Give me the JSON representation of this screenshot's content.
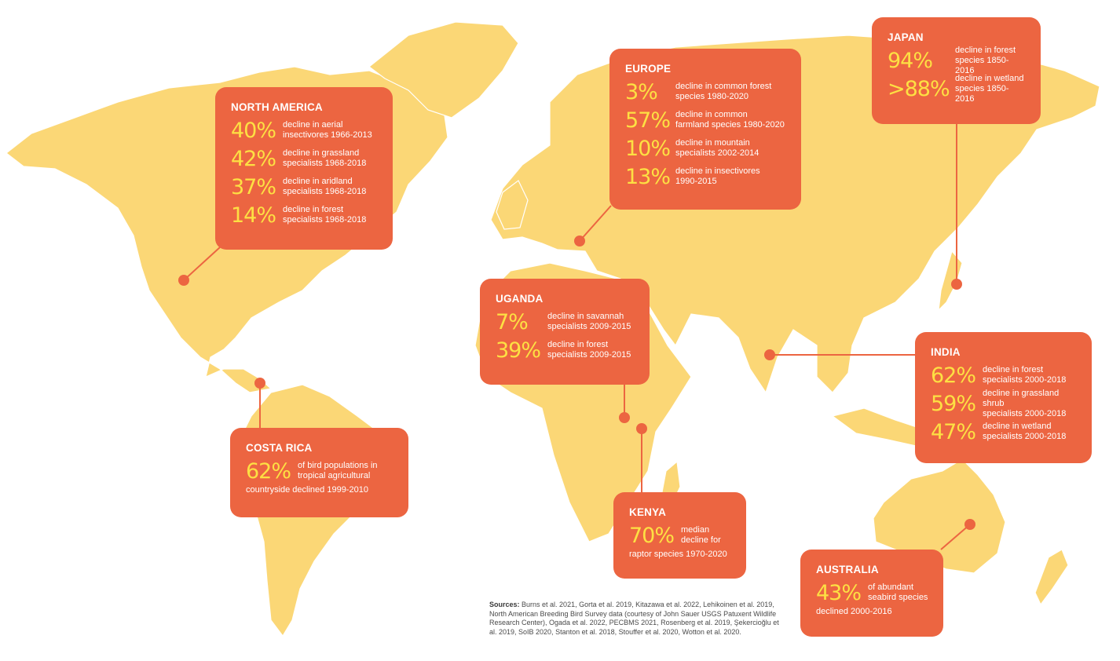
{
  "colors": {
    "land": "#fbd776",
    "box": "#ec6541",
    "percent": "#fde043",
    "text": "#ffffff"
  },
  "regions": {
    "north_america": {
      "title": "NORTH AMERICA",
      "stats": [
        {
          "value": "40%",
          "desc": "decline in aerial\ninsectivores 1966-2013"
        },
        {
          "value": "42%",
          "desc": "decline in grassland\nspecialists 1968-2018"
        },
        {
          "value": "37%",
          "desc": "decline in aridland\nspecialists 1968-2018"
        },
        {
          "value": "14%",
          "desc": "decline in forest\nspecialists 1968-2018"
        }
      ]
    },
    "europe": {
      "title": "EUROPE",
      "stats": [
        {
          "value": "3%",
          "desc": "decline in common forest\nspecies 1980-2020"
        },
        {
          "value": "57%",
          "desc": "decline in common\nfarmland species 1980-2020"
        },
        {
          "value": "10%",
          "desc": "decline in mountain\nspecialists 2002-2014"
        },
        {
          "value": "13%",
          "desc": "decline in insectivores\n1990-2015"
        }
      ]
    },
    "japan": {
      "title": "JAPAN",
      "stats": [
        {
          "value": "94%",
          "desc": "decline in forest\nspecies 1850-2016"
        },
        {
          "value": ">88%",
          "desc": "decline in wetland\nspecies 1850-2016"
        }
      ]
    },
    "uganda": {
      "title": "UGANDA",
      "stats": [
        {
          "value": "7%",
          "desc": "decline in savannah\nspecialists 2009-2015"
        },
        {
          "value": "39%",
          "desc": "decline in forest\nspecialists 2009-2015"
        }
      ]
    },
    "india": {
      "title": "INDIA",
      "stats": [
        {
          "value": "62%",
          "desc": "decline in forest\nspecialists 2000-2018"
        },
        {
          "value": "59%",
          "desc": "decline in grassland shrub\nspecialists 2000-2018"
        },
        {
          "value": "47%",
          "desc": "decline in wetland\nspecialists 2000-2018"
        }
      ]
    },
    "costa_rica": {
      "title": "COSTA RICA",
      "stats": [
        {
          "value": "62%",
          "desc": "of bird populations in\ntropical agricultural"
        }
      ],
      "tail": "countryside declined 1999-2010"
    },
    "kenya": {
      "title": "KENYA",
      "stats": [
        {
          "value": "70%",
          "desc": "median\ndecline for"
        }
      ],
      "tail": "raptor species 1970-2020"
    },
    "australia": {
      "title": "AUSTRALIA",
      "stats": [
        {
          "value": "43%",
          "desc": "of abundant\nseabird species"
        }
      ],
      "tail": "declined 2000-2016"
    }
  },
  "sources": {
    "label": "Sources:",
    "text": "Burns et al. 2021, Gorta et al. 2019, Kitazawa et al. 2022, Lehikoinen et al. 2019, North American Breeding Bird Survey data (courtesy of John Sauer USGS Patuxent Wildlife Research Center), Ogada et al. 2022, PECBMS 2021, Rosenberg et al. 2019, Şekercioğlu et al. 2019, SoIB 2020, Stanton et al. 2018, Stouffer et al. 2020, Wotton et al. 2020."
  }
}
